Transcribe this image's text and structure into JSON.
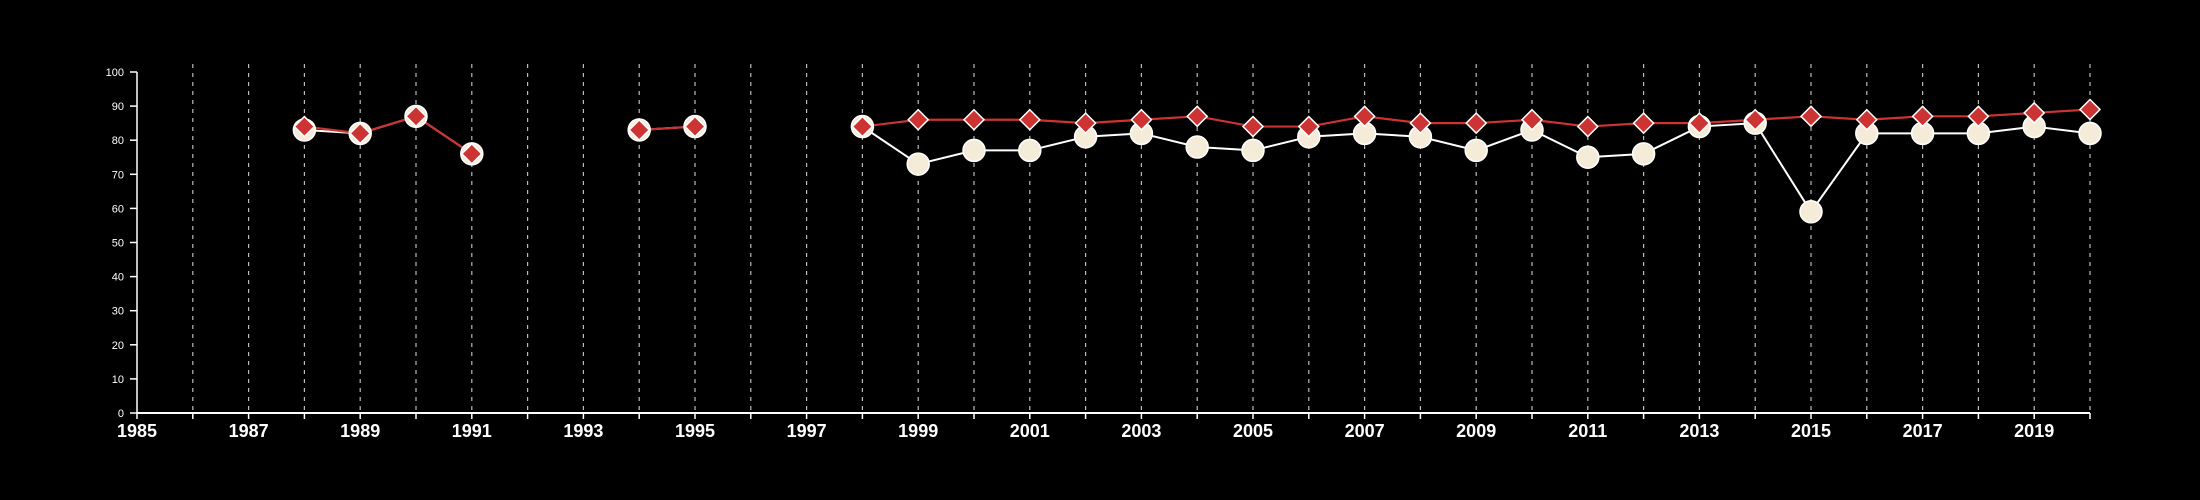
{
  "chart_data": {
    "type": "line",
    "x_ticks_labeled": [
      "1985",
      "1987",
      "1989",
      "1991",
      "1993",
      "1995",
      "1997",
      "1999",
      "2001",
      "2003",
      "2005",
      "2007",
      "2009",
      "2011",
      "2013",
      "2015",
      "2017",
      "2019"
    ],
    "y_ticks": [
      "0",
      "10",
      "20",
      "30",
      "40",
      "50",
      "60",
      "70",
      "80",
      "90",
      "100"
    ],
    "xlim": [
      1985,
      2020
    ],
    "ylim": [
      0,
      100
    ],
    "grid_vertical": true,
    "colors": {
      "series_a": "#cc3333",
      "series_b": "#f5ebd9",
      "line_b": "#ffffff",
      "axis": "#ffffff",
      "grid": "#bbbbbb"
    },
    "series": [
      {
        "marker": "diamond",
        "x": [
          1988,
          1989,
          1990,
          1991,
          1994,
          1995,
          1998,
          1999,
          2000,
          2001,
          2002,
          2003,
          2004,
          2005,
          2006,
          2007,
          2008,
          2009,
          2010,
          2011,
          2012,
          2013,
          2014,
          2015,
          2016,
          2017,
          2018,
          2019,
          2020
        ],
        "y": [
          84,
          82,
          87,
          76,
          83,
          84,
          84,
          86,
          86,
          86,
          85,
          86,
          87,
          84,
          84,
          87,
          85,
          85,
          86,
          84,
          85,
          85,
          86,
          87,
          86,
          87,
          87,
          88,
          89
        ]
      },
      {
        "marker": "circle",
        "x": [
          1988,
          1989,
          1990,
          1991,
          1994,
          1995,
          1998,
          1999,
          2000,
          2001,
          2002,
          2003,
          2004,
          2005,
          2006,
          2007,
          2008,
          2009,
          2010,
          2011,
          2012,
          2013,
          2014,
          2015,
          2016,
          2017,
          2018,
          2019,
          2020
        ],
        "y": [
          83,
          82,
          87,
          76,
          83,
          84,
          84,
          73,
          77,
          77,
          81,
          82,
          78,
          77,
          81,
          82,
          81,
          77,
          83,
          75,
          76,
          84,
          85,
          59,
          82,
          82,
          82,
          84,
          82
        ]
      }
    ]
  }
}
